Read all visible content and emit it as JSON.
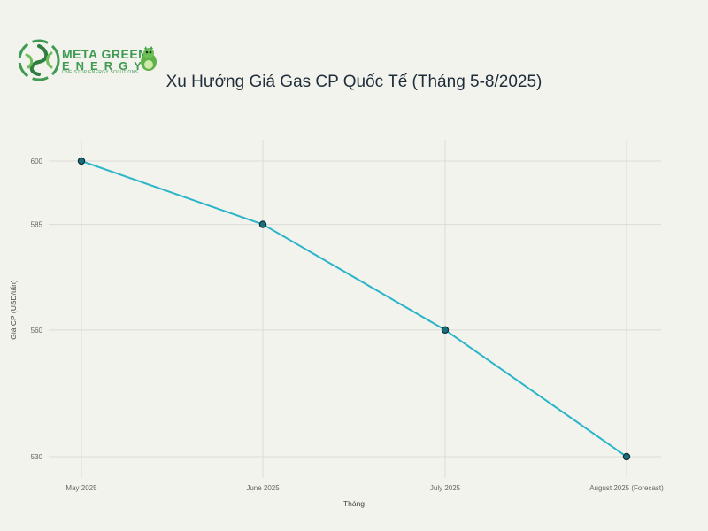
{
  "brand": {
    "name_line1": "META GREEN",
    "name_line2": "ENERGY",
    "tagline": "ONE-STOP ENERGY SOLUTIONS",
    "color": "#3f9a52"
  },
  "chart_data": {
    "type": "line",
    "title": "Xu Hướng Giá Gas CP Quốc Tế (Tháng 5-8/2025)",
    "xlabel": "Tháng",
    "ylabel": "Giá CP (USD/tấn)",
    "categories": [
      "May 2025",
      "June 2025",
      "July 2025",
      "August 2025 (Forecast)"
    ],
    "series": [
      {
        "values": [
          600,
          585,
          560,
          530
        ]
      }
    ],
    "y_ticks": [
      530,
      560,
      585,
      600
    ],
    "ylim": [
      525,
      605
    ],
    "grid": true,
    "line_color": "#2bb5c8",
    "marker_fill": "#17707c",
    "marker_stroke": "#0f2e38"
  }
}
